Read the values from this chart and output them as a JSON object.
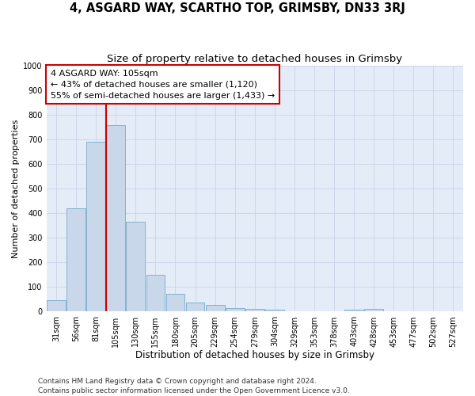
{
  "title": "4, ASGARD WAY, SCARTHO TOP, GRIMSBY, DN33 3RJ",
  "subtitle": "Size of property relative to detached houses in Grimsby",
  "xlabel": "Distribution of detached houses by size in Grimsby",
  "ylabel": "Number of detached properties",
  "categories": [
    "31sqm",
    "56sqm",
    "81sqm",
    "105sqm",
    "130sqm",
    "155sqm",
    "180sqm",
    "205sqm",
    "229sqm",
    "254sqm",
    "279sqm",
    "304sqm",
    "329sqm",
    "353sqm",
    "378sqm",
    "403sqm",
    "428sqm",
    "453sqm",
    "477sqm",
    "502sqm",
    "527sqm"
  ],
  "values": [
    47,
    420,
    690,
    760,
    365,
    150,
    72,
    38,
    28,
    16,
    10,
    8,
    0,
    0,
    0,
    7,
    10,
    0,
    0,
    0,
    0
  ],
  "bar_color": "#c8d8ea",
  "bar_edge_color": "#7aaac8",
  "highlight_line_color": "#cc0000",
  "annotation_text": "4 ASGARD WAY: 105sqm\n← 43% of detached houses are smaller (1,120)\n55% of semi-detached houses are larger (1,433) →",
  "annotation_box_color": "white",
  "annotation_box_edge_color": "#cc0000",
  "ylim": [
    0,
    1000
  ],
  "yticks": [
    0,
    100,
    200,
    300,
    400,
    500,
    600,
    700,
    800,
    900,
    1000
  ],
  "grid_color": "#c8d4e8",
  "background_color": "#e4ecf8",
  "footer_line1": "Contains HM Land Registry data © Crown copyright and database right 2024.",
  "footer_line2": "Contains public sector information licensed under the Open Government Licence v3.0.",
  "title_fontsize": 10.5,
  "subtitle_fontsize": 9.5,
  "xlabel_fontsize": 8.5,
  "ylabel_fontsize": 8,
  "tick_fontsize": 7,
  "annotation_fontsize": 8,
  "footer_fontsize": 6.5
}
